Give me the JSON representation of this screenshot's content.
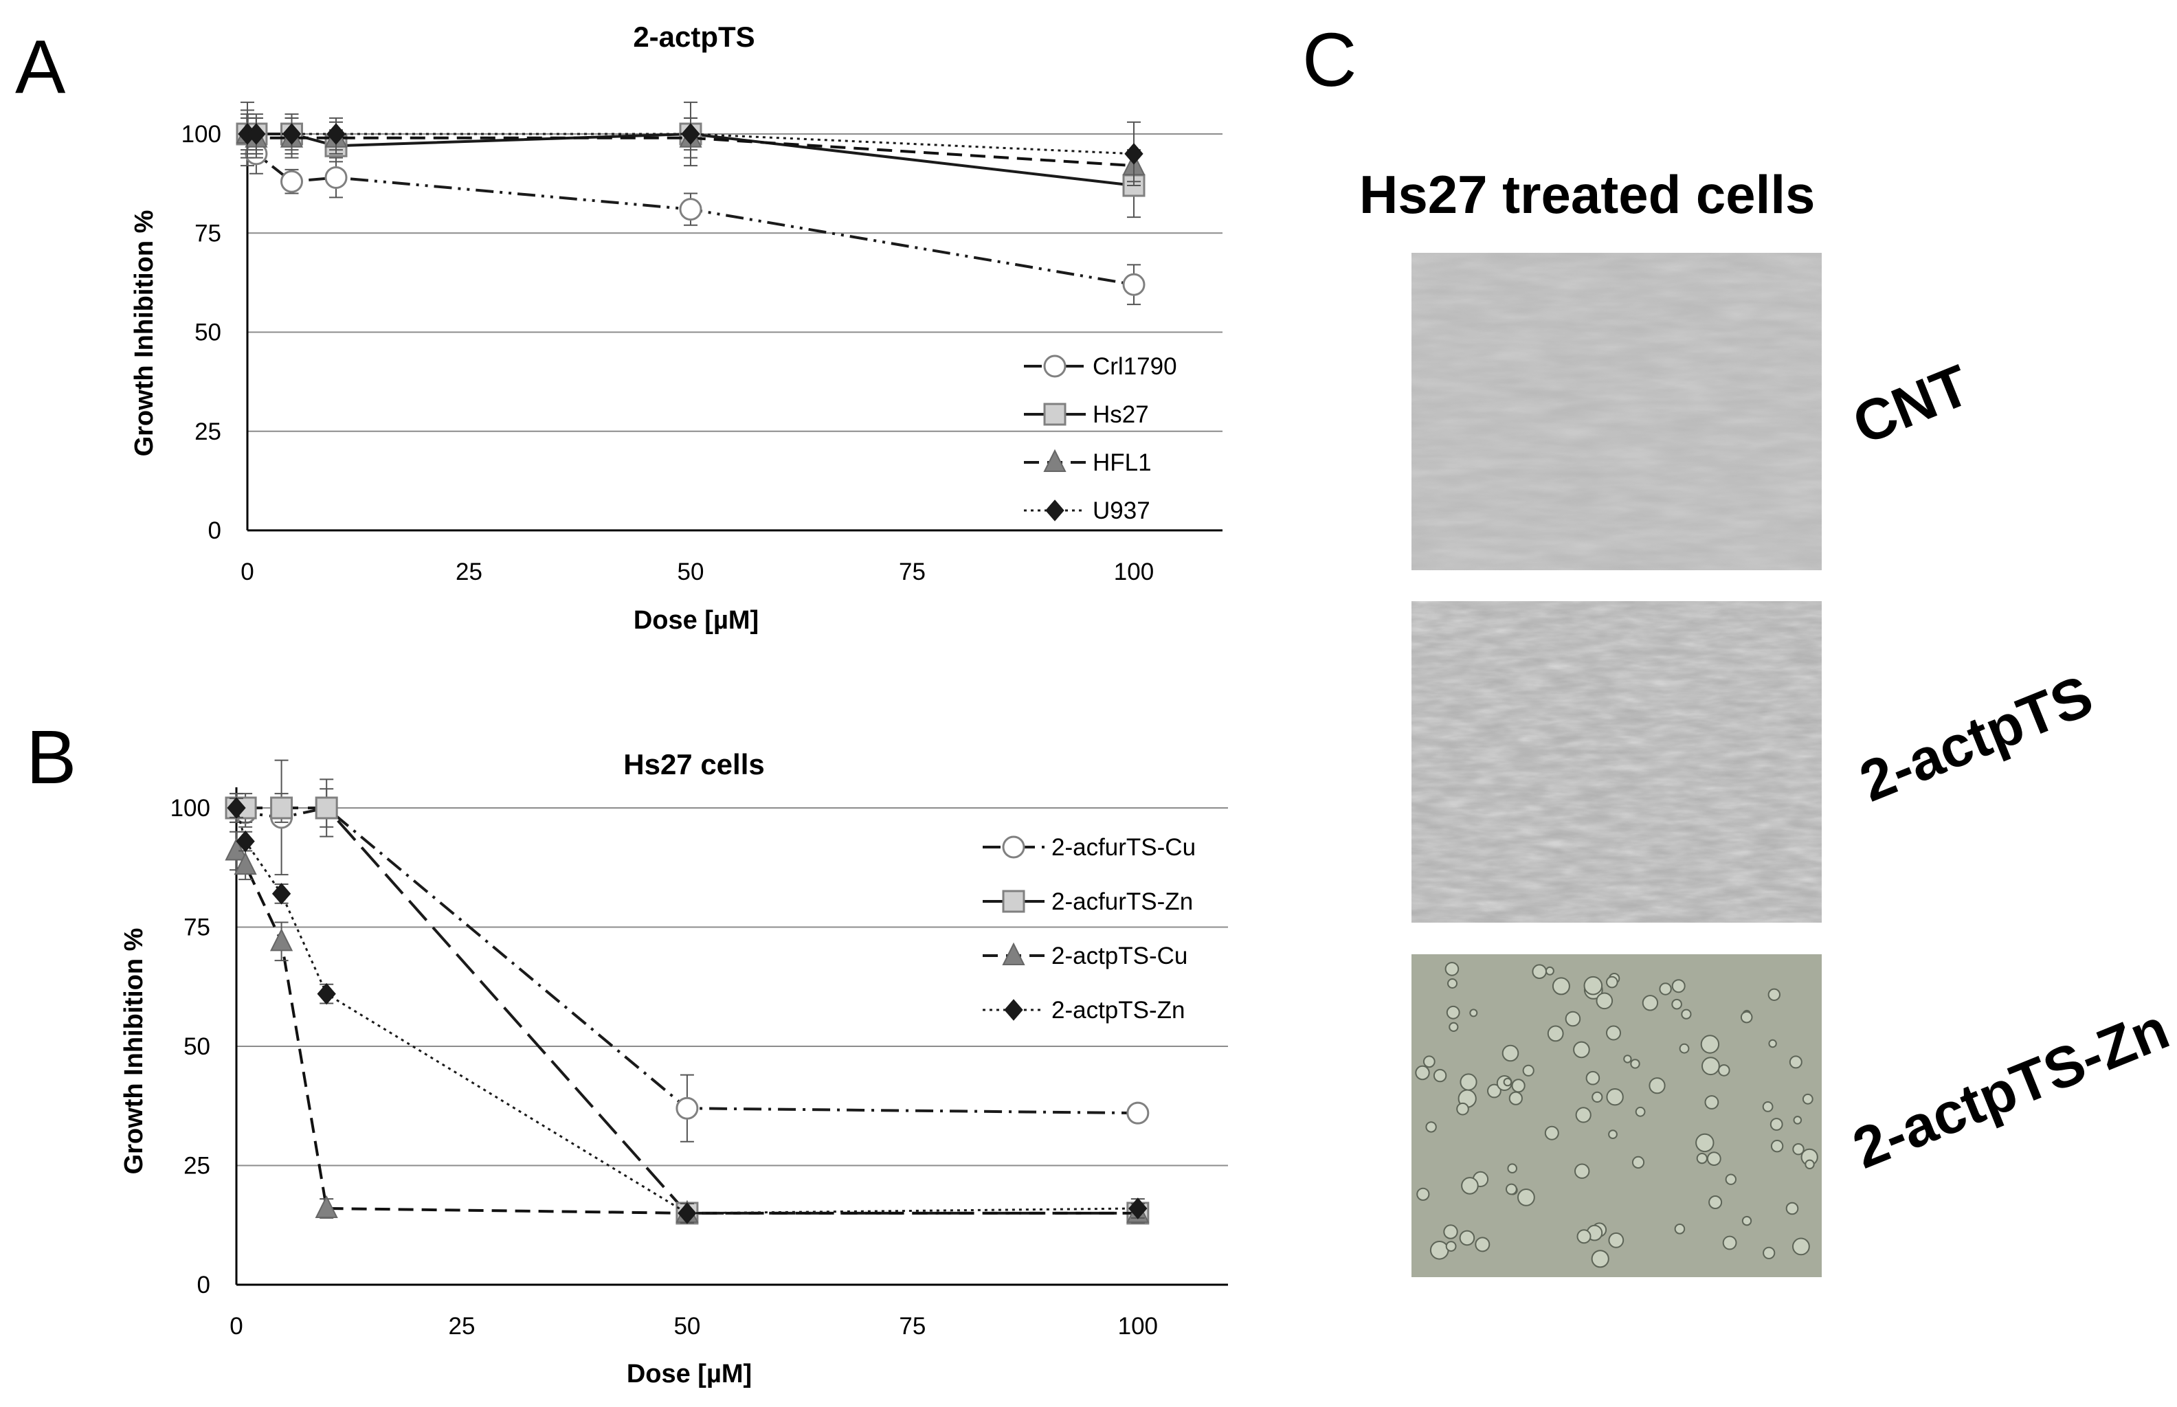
{
  "panels": {
    "a": "A",
    "b": "B",
    "c": "C"
  },
  "photos": {
    "heading": "Hs27 treated cells",
    "labels": [
      "CNT",
      "2-actpTS",
      "2-actpTS-Zn"
    ]
  },
  "chart_data": [
    {
      "type": "line",
      "title": "2-actpTS",
      "xlabel": "Dose [µM]",
      "ylabel": "Growth Inhibition %",
      "xlim": [
        0,
        110
      ],
      "ylim": [
        0,
        100
      ],
      "xticks": [
        0,
        25,
        50,
        75,
        100
      ],
      "yticks": [
        0,
        25,
        50,
        75,
        100
      ],
      "grid": "horizontal",
      "legend_position": "bottom-right",
      "x": [
        0,
        1,
        5,
        10,
        50,
        100
      ],
      "series": [
        {
          "name": "Crl1790",
          "marker": "open-circle",
          "line": "dash-dot-dot",
          "values": [
            100,
            95,
            88,
            89,
            81,
            62
          ],
          "errors": [
            8,
            5,
            3,
            5,
            4,
            5
          ]
        },
        {
          "name": "Hs27",
          "marker": "square",
          "line": "solid",
          "values": [
            100,
            100,
            100,
            97,
            100,
            87
          ],
          "errors": [
            6,
            5,
            5,
            4,
            8,
            8
          ]
        },
        {
          "name": "HFL1",
          "marker": "triangle",
          "line": "dash",
          "values": [
            100,
            99,
            99,
            99,
            99,
            92
          ],
          "errors": [
            5,
            5,
            5,
            4,
            5,
            4
          ]
        },
        {
          "name": "U937",
          "marker": "diamond",
          "line": "dotted",
          "values": [
            100,
            100,
            100,
            100,
            100,
            95
          ],
          "errors": [
            4,
            4,
            4,
            4,
            4,
            8
          ]
        }
      ],
      "colors": {
        "dark": "#1a1a1a",
        "gray": "#808080",
        "light_fill": "#d0d0d0"
      }
    },
    {
      "type": "line",
      "title": "Hs27 cells",
      "xlabel": "Dose [µM]",
      "ylabel": "Growth Inhibition %",
      "xlim": [
        0,
        110
      ],
      "ylim": [
        0,
        100
      ],
      "xticks": [
        0,
        25,
        50,
        75,
        100
      ],
      "yticks": [
        0,
        25,
        50,
        75,
        100
      ],
      "grid": "horizontal",
      "legend_position": "top-right",
      "x": [
        0,
        1,
        5,
        10,
        50,
        100
      ],
      "series": [
        {
          "name": "2-acfurTS-Cu",
          "marker": "open-circle",
          "line": "dash-dot",
          "values": [
            100,
            99,
            98,
            100,
            37,
            36
          ],
          "errors": [
            3,
            3,
            12,
            4,
            7,
            1
          ]
        },
        {
          "name": "2-acfurTS-Zn",
          "marker": "square",
          "line": "long-dash",
          "values": [
            100,
            100,
            100,
            100,
            15,
            15
          ],
          "errors": [
            3,
            3,
            3,
            6,
            2,
            2
          ]
        },
        {
          "name": "2-actpTS-Cu",
          "marker": "triangle",
          "line": "dash",
          "values": [
            91,
            88,
            72,
            16,
            15,
            15
          ],
          "errors": [
            4,
            3,
            4,
            2,
            2,
            2
          ]
        },
        {
          "name": "2-actpTS-Zn",
          "marker": "diamond",
          "line": "dotted",
          "values": [
            100,
            93,
            82,
            61,
            15,
            16
          ],
          "errors": [
            2,
            2,
            2,
            2,
            2,
            2
          ]
        }
      ],
      "colors": {
        "dark": "#1a1a1a",
        "gray": "#808080",
        "light_fill": "#d0d0d0"
      }
    }
  ]
}
